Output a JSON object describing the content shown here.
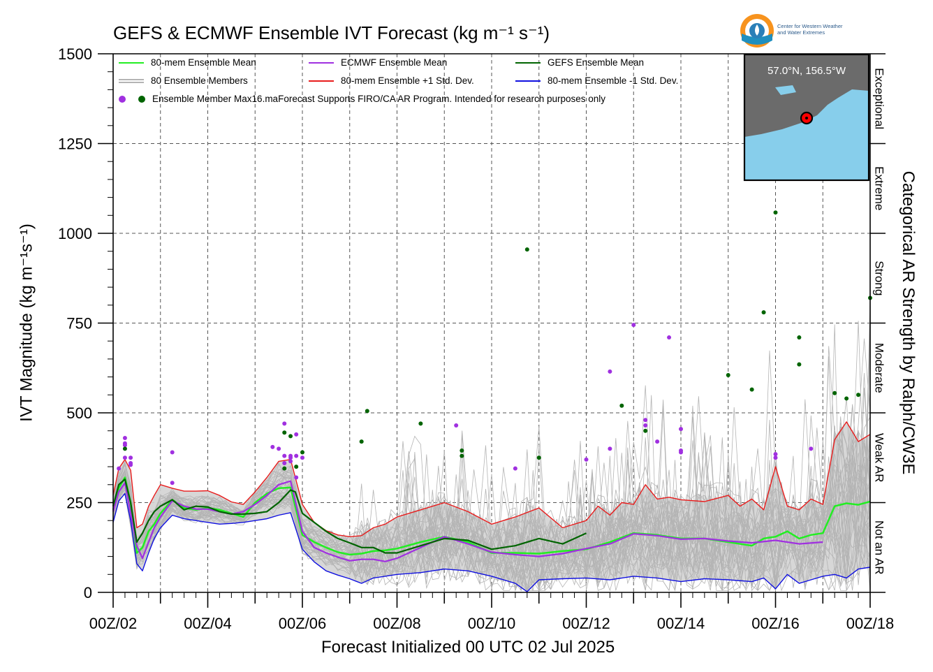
{
  "title": "GEFS & ECMWF Ensemble IVT Forecast (kg m⁻¹ s⁻¹)",
  "xlabel": "Forecast Initialized 00 UTC 02 Jul 2025",
  "ylabel": "IVT Magnitude (kg m⁻¹s⁻¹)",
  "right_label": "Categorical AR Strength by Ralph/CW3E",
  "logo": {
    "line1": "Center for Western Weather",
    "line2": "and Water Extremes"
  },
  "inset": {
    "label": "57.0°N, 156.5°W",
    "land_color": "#6b6b6b",
    "water_color": "#87ceeb"
  },
  "legend": {
    "mean80": "80-mem Ensemble Mean",
    "ecmwf": "ECMWF Ensemble Mean",
    "gefs": "GEFS Ensemble Mean",
    "members": "80 Ensemble Members",
    "plus": "80-mem Ensemble +1 Std. Dev.",
    "minus": "80-mem Ensemble -1 Std. Dev.",
    "max_note": "Ensemble Member Max16.maForecast Supports FIRO/CA AR Program. Intended for research purposes only"
  },
  "colors": {
    "mean80": "#22ee22",
    "ecmwf": "#a030e0",
    "gefs": "#006400",
    "plus": "#e81c1c",
    "minus": "#1010e0",
    "members": "#b4b4b4",
    "band": "#d3d3d3"
  },
  "chart_data": {
    "type": "line",
    "x_unit": "day of July 2025 (00 UTC)",
    "xlim": [
      2,
      18
    ],
    "ylim": [
      0,
      1500
    ],
    "xticks": [
      "00Z/02",
      "00Z/04",
      "00Z/06",
      "00Z/08",
      "00Z/10",
      "00Z/12",
      "00Z/14",
      "00Z/16",
      "00Z/18"
    ],
    "yticks": [
      0,
      250,
      500,
      750,
      1000,
      1250,
      1500
    ],
    "grid": true,
    "categories": [
      {
        "label": "Not an AR",
        "range": [
          0,
          250
        ]
      },
      {
        "label": "Weak AR",
        "range": [
          250,
          500
        ]
      },
      {
        "label": "Moderate",
        "range": [
          500,
          750
        ]
      },
      {
        "label": "Strong",
        "range": [
          750,
          1000
        ]
      },
      {
        "label": "Extreme",
        "range": [
          1000,
          1250
        ]
      },
      {
        "label": "Exceptional",
        "range": [
          1250,
          1500
        ]
      }
    ],
    "series": [
      {
        "name": "80-mem Ensemble Mean",
        "x": [
          2,
          2.12,
          2.25,
          2.37,
          2.5,
          2.62,
          2.75,
          2.87,
          3,
          3.25,
          3.5,
          3.75,
          4,
          4.25,
          4.5,
          4.75,
          5,
          5.25,
          5.5,
          5.75,
          6,
          6.25,
          6.5,
          6.75,
          7,
          7.25,
          7.5,
          7.75,
          8,
          8.5,
          9,
          9.5,
          10,
          10.5,
          11,
          11.5,
          12,
          12.5,
          13,
          13.5,
          14,
          14.5,
          15,
          15.5,
          15.75,
          16,
          16.25,
          16.5,
          16.75,
          17,
          17.25,
          17.5,
          17.75,
          18
        ],
        "y": [
          230,
          290,
          320,
          250,
          110,
          125,
          170,
          190,
          220,
          258,
          235,
          230,
          235,
          230,
          220,
          210,
          250,
          275,
          290,
          292,
          160,
          140,
          125,
          112,
          105,
          108,
          115,
          117,
          122,
          140,
          155,
          140,
          110,
          110,
          108,
          115,
          120,
          140,
          165,
          160,
          150,
          150,
          140,
          130,
          150,
          155,
          170,
          150,
          160,
          165,
          240,
          248,
          244,
          253
        ]
      },
      {
        "name": "ECMWF Ensemble Mean",
        "x": [
          2,
          2.12,
          2.25,
          2.37,
          2.5,
          2.62,
          2.75,
          2.87,
          3,
          3.25,
          3.5,
          3.75,
          4,
          4.25,
          4.5,
          4.75,
          5,
          5.25,
          5.5,
          5.75,
          6,
          6.25,
          6.5,
          6.75,
          7,
          7.25,
          7.5,
          7.75,
          8,
          8.5,
          9,
          9.5,
          10,
          10.5,
          11,
          11.5,
          12,
          12.5,
          13,
          13.5,
          14,
          14.5,
          15,
          15.5,
          16,
          16.5,
          17
        ],
        "y": [
          225,
          280,
          305,
          220,
          130,
          95,
          140,
          180,
          210,
          255,
          240,
          232,
          232,
          225,
          218,
          225,
          245,
          270,
          300,
          310,
          170,
          125,
          110,
          98,
          88,
          92,
          92,
          86,
          95,
          125,
          155,
          135,
          112,
          105,
          100,
          108,
          122,
          135,
          163,
          158,
          148,
          150,
          143,
          138,
          145,
          135,
          140
        ]
      },
      {
        "name": "GEFS Ensemble Mean",
        "x": [
          2,
          2.12,
          2.25,
          2.37,
          2.5,
          2.62,
          2.75,
          2.87,
          3,
          3.25,
          3.5,
          3.75,
          4,
          4.25,
          4.5,
          4.75,
          5,
          5.25,
          5.5,
          5.75,
          5.85,
          6,
          6.25,
          6.5,
          6.75,
          7,
          7.25,
          7.5,
          7.75,
          8,
          8.5,
          9,
          9.5,
          10,
          10.5,
          11,
          11.5,
          12
        ],
        "y": [
          240,
          300,
          315,
          250,
          140,
          165,
          200,
          225,
          240,
          258,
          230,
          240,
          238,
          225,
          218,
          218,
          220,
          225,
          250,
          285,
          280,
          220,
          195,
          170,
          150,
          138,
          125,
          125,
          110,
          110,
          130,
          150,
          145,
          120,
          130,
          150,
          135,
          165
        ]
      },
      {
        "name": "80-mem Ensemble +1 Std. Dev.",
        "x": [
          2,
          2.12,
          2.25,
          2.37,
          2.5,
          2.62,
          2.75,
          2.87,
          3,
          3.25,
          3.5,
          3.75,
          4,
          4.25,
          4.5,
          4.75,
          5,
          5.25,
          5.5,
          5.75,
          6,
          6.25,
          6.5,
          6.75,
          7,
          7.25,
          7.5,
          7.75,
          8,
          8.5,
          9,
          9.5,
          10,
          10.5,
          11,
          11.5,
          12,
          12.25,
          12.5,
          12.75,
          13,
          13.25,
          13.5,
          13.75,
          14,
          14.5,
          15,
          15.25,
          15.5,
          15.75,
          16,
          16.25,
          16.5,
          16.75,
          17,
          17.25,
          17.5,
          17.75,
          18
        ],
        "y": [
          270,
          345,
          370,
          340,
          180,
          190,
          240,
          270,
          300,
          290,
          282,
          282,
          283,
          270,
          252,
          245,
          280,
          320,
          365,
          370,
          245,
          195,
          172,
          160,
          155,
          158,
          180,
          190,
          210,
          230,
          250,
          225,
          190,
          210,
          235,
          180,
          200,
          240,
          215,
          250,
          245,
          300,
          260,
          265,
          258,
          253,
          270,
          240,
          260,
          230,
          350,
          240,
          230,
          260,
          245,
          425,
          475,
          420,
          440
        ]
      },
      {
        "name": "80-mem Ensemble -1 Std. Dev.",
        "x": [
          2,
          2.12,
          2.25,
          2.37,
          2.5,
          2.62,
          2.75,
          2.87,
          3,
          3.25,
          3.5,
          3.75,
          4,
          4.25,
          4.5,
          4.75,
          5,
          5.25,
          5.5,
          5.75,
          6,
          6.25,
          6.5,
          6.75,
          7,
          7.25,
          7.5,
          7.75,
          8,
          8.5,
          9,
          9.5,
          10,
          10.5,
          10.75,
          11,
          11.5,
          12,
          12.5,
          13,
          13.5,
          14,
          14.5,
          15,
          15.5,
          15.75,
          16,
          16.25,
          16.5,
          16.75,
          17,
          17.25,
          17.5,
          17.75,
          18
        ],
        "y": [
          195,
          255,
          275,
          200,
          80,
          60,
          110,
          150,
          180,
          215,
          205,
          200,
          195,
          190,
          192,
          195,
          200,
          205,
          215,
          222,
          120,
          85,
          60,
          48,
          38,
          25,
          40,
          45,
          50,
          55,
          65,
          60,
          45,
          25,
          2,
          35,
          38,
          40,
          35,
          45,
          40,
          30,
          38,
          35,
          30,
          40,
          10,
          50,
          25,
          35,
          45,
          50,
          40,
          65,
          70
        ]
      }
    ],
    "max_points": [
      {
        "model": "ECMWF",
        "x": [
          2.12,
          2.25,
          2.25,
          2.25,
          2.25,
          2.37,
          2.37,
          2.37,
          3.25,
          3.25,
          5.37,
          5.5,
          5.62,
          5.62,
          5.62,
          5.75,
          5.75,
          5.75,
          5.87,
          5.87,
          5.87,
          6,
          9.25,
          10.5,
          12,
          12.5,
          12.5,
          13,
          13.25,
          13.25,
          13.5,
          13.75,
          14,
          14,
          14,
          16,
          16,
          16.75
        ],
        "y": [
          345,
          430,
          415,
          410,
          375,
          360,
          375,
          355,
          390,
          305,
          405,
          400,
          470,
          380,
          360,
          380,
          375,
          365,
          320,
          440,
          380,
          375,
          465,
          345,
          370,
          400,
          615,
          745,
          480,
          465,
          420,
          710,
          455,
          395,
          390,
          385,
          375,
          400
        ]
      },
      {
        "model": "GEFS",
        "x": [
          2.25,
          5.62,
          5.62,
          5.75,
          5.87,
          6,
          7.25,
          7.37,
          8.5,
          9.37,
          9.37,
          10.75,
          11,
          12.75,
          13.25,
          15,
          15.5,
          15.75,
          16,
          16.5,
          16.5,
          17.25,
          17.5,
          17.75,
          18
        ],
        "y": [
          400,
          345,
          445,
          435,
          350,
          390,
          420,
          505,
          470,
          395,
          380,
          955,
          375,
          520,
          450,
          605,
          565,
          780,
          1058,
          710,
          635,
          555,
          540,
          550,
          820
        ]
      }
    ]
  }
}
